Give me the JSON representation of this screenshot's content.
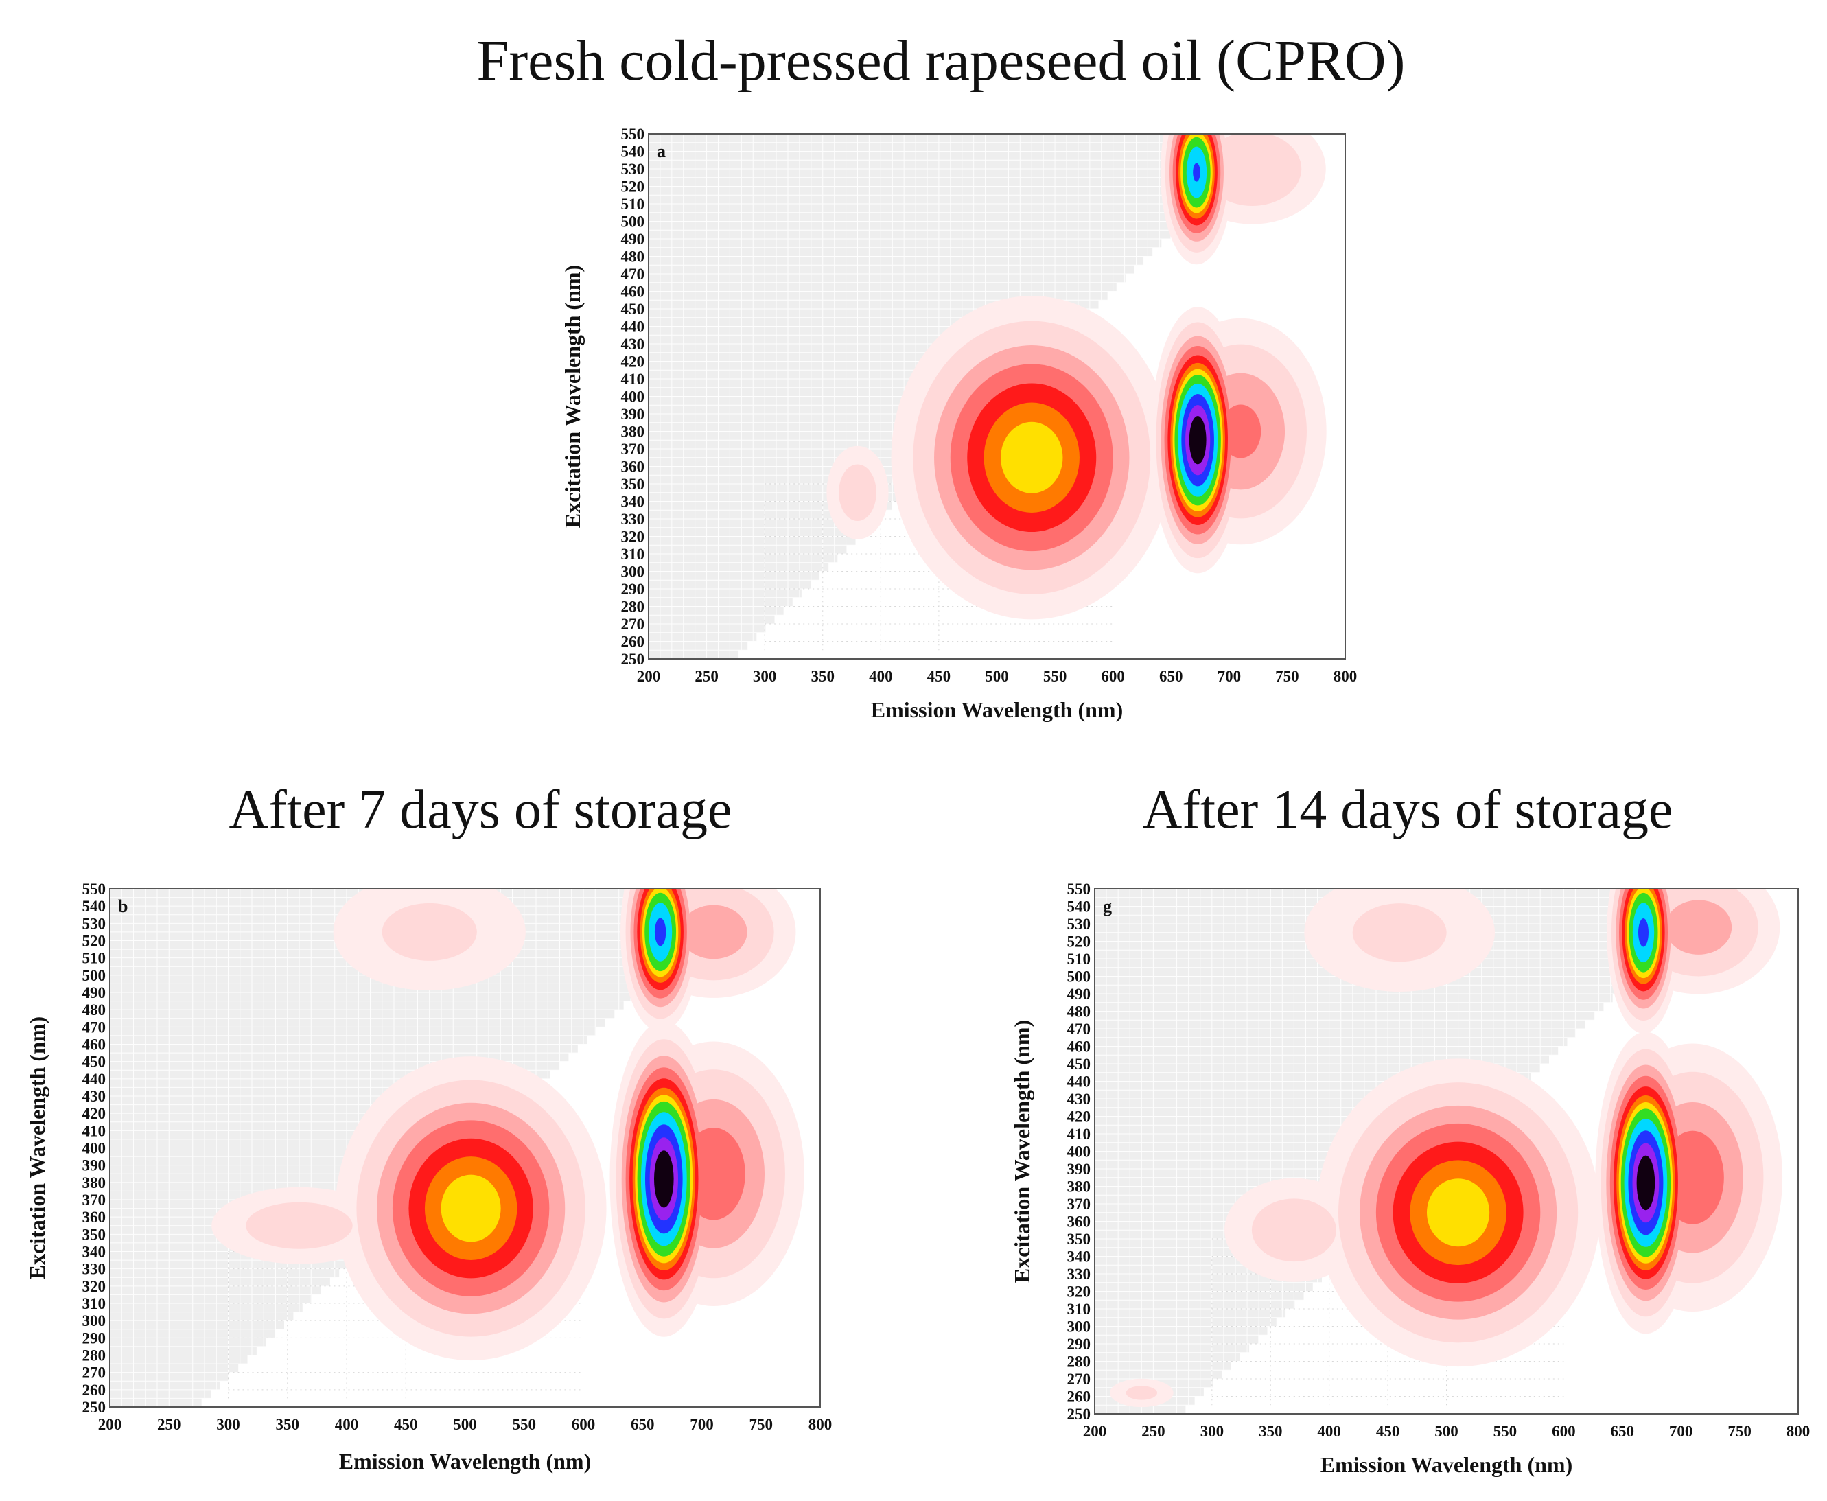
{
  "titles": {
    "top": "Fresh cold-pressed rapeseed oil (CPRO)",
    "left": "After 7 days of storage",
    "right": "After 14 days of storage"
  },
  "palette": {
    "background_grid": "#eeeeee",
    "low": "#ffd9d9",
    "red": "#ff1a1a",
    "yellow": "#ffe000",
    "green": "#33dd22",
    "cyan": "#00d8ff",
    "blue": "#2233ff",
    "purple": "#9922ee",
    "black": "#110011"
  },
  "chart_data": [
    {
      "type": "heatmap",
      "panel": "a",
      "xlabel": "Emission Wavelength (nm)",
      "ylabel": "Excitation Wavelength (nm)",
      "xlim": [
        200,
        800
      ],
      "ylim": [
        250,
        550
      ],
      "xticks": [
        200,
        250,
        300,
        350,
        400,
        450,
        500,
        550,
        600,
        650,
        700,
        750,
        800
      ],
      "yticks": [
        250,
        260,
        270,
        280,
        290,
        300,
        310,
        320,
        330,
        340,
        350,
        360,
        370,
        380,
        390,
        400,
        410,
        420,
        430,
        440,
        450,
        460,
        470,
        480,
        490,
        500,
        510,
        520,
        530,
        540,
        550
      ],
      "peaks": [
        {
          "em": 530,
          "ex": 365,
          "intensity": 0.45,
          "sx": 55,
          "sy": 42
        },
        {
          "em": 673,
          "ex": 375,
          "intensity": 1.0,
          "sx": 16,
          "sy": 30
        },
        {
          "em": 672,
          "ex": 528,
          "intensity": 0.7,
          "sx": 13,
          "sy": 22
        },
        {
          "em": 380,
          "ex": 345,
          "intensity": 0.12,
          "sx": 18,
          "sy": 18
        },
        {
          "em": 710,
          "ex": 380,
          "intensity": 0.22,
          "sx": 40,
          "sy": 35
        },
        {
          "em": 720,
          "ex": 530,
          "intensity": 0.14,
          "sx": 40,
          "sy": 20
        }
      ]
    },
    {
      "type": "heatmap",
      "panel": "b",
      "xlabel": "Emission Wavelength (nm)",
      "ylabel": "Excitation Wavelength (nm)",
      "xlim": [
        200,
        800
      ],
      "ylim": [
        250,
        550
      ],
      "xticks": [
        200,
        250,
        300,
        350,
        400,
        450,
        500,
        550,
        600,
        650,
        700,
        750,
        800
      ],
      "yticks": [
        250,
        260,
        270,
        280,
        290,
        300,
        310,
        320,
        330,
        340,
        350,
        360,
        370,
        380,
        390,
        400,
        410,
        420,
        430,
        440,
        450,
        460,
        470,
        480,
        490,
        500,
        510,
        520,
        530,
        540,
        550
      ],
      "peaks": [
        {
          "em": 505,
          "ex": 365,
          "intensity": 0.45,
          "sx": 52,
          "sy": 40
        },
        {
          "em": 668,
          "ex": 382,
          "intensity": 1.0,
          "sx": 18,
          "sy": 36
        },
        {
          "em": 665,
          "ex": 525,
          "intensity": 0.72,
          "sx": 14,
          "sy": 24
        },
        {
          "em": 360,
          "ex": 355,
          "intensity": 0.12,
          "sx": 50,
          "sy": 15
        },
        {
          "em": 710,
          "ex": 385,
          "intensity": 0.25,
          "sx": 40,
          "sy": 40
        },
        {
          "em": 710,
          "ex": 525,
          "intensity": 0.18,
          "sx": 40,
          "sy": 22
        },
        {
          "em": 470,
          "ex": 525,
          "intensity": 0.1,
          "sx": 60,
          "sy": 25
        }
      ]
    },
    {
      "type": "heatmap",
      "panel": "g",
      "xlabel": "Emission Wavelength (nm)",
      "ylabel": "Excitation Wavelength (nm)",
      "xlim": [
        200,
        800
      ],
      "ylim": [
        250,
        550
      ],
      "xticks": [
        200,
        250,
        300,
        350,
        400,
        450,
        500,
        550,
        600,
        650,
        700,
        750,
        800
      ],
      "yticks": [
        250,
        260,
        270,
        280,
        290,
        300,
        310,
        320,
        330,
        340,
        350,
        360,
        370,
        380,
        390,
        400,
        410,
        420,
        430,
        440,
        450,
        460,
        470,
        480,
        490,
        500,
        510,
        520,
        530,
        540,
        550
      ],
      "peaks": [
        {
          "em": 510,
          "ex": 365,
          "intensity": 0.45,
          "sx": 55,
          "sy": 40
        },
        {
          "em": 670,
          "ex": 382,
          "intensity": 1.0,
          "sx": 17,
          "sy": 34
        },
        {
          "em": 668,
          "ex": 525,
          "intensity": 0.72,
          "sx": 13,
          "sy": 24
        },
        {
          "em": 370,
          "ex": 355,
          "intensity": 0.12,
          "sx": 40,
          "sy": 20
        },
        {
          "em": 710,
          "ex": 385,
          "intensity": 0.25,
          "sx": 40,
          "sy": 40
        },
        {
          "em": 715,
          "ex": 528,
          "intensity": 0.18,
          "sx": 40,
          "sy": 22
        },
        {
          "em": 240,
          "ex": 262,
          "intensity": 0.1,
          "sx": 20,
          "sy": 6
        },
        {
          "em": 460,
          "ex": 525,
          "intensity": 0.1,
          "sx": 60,
          "sy": 25
        }
      ]
    }
  ]
}
